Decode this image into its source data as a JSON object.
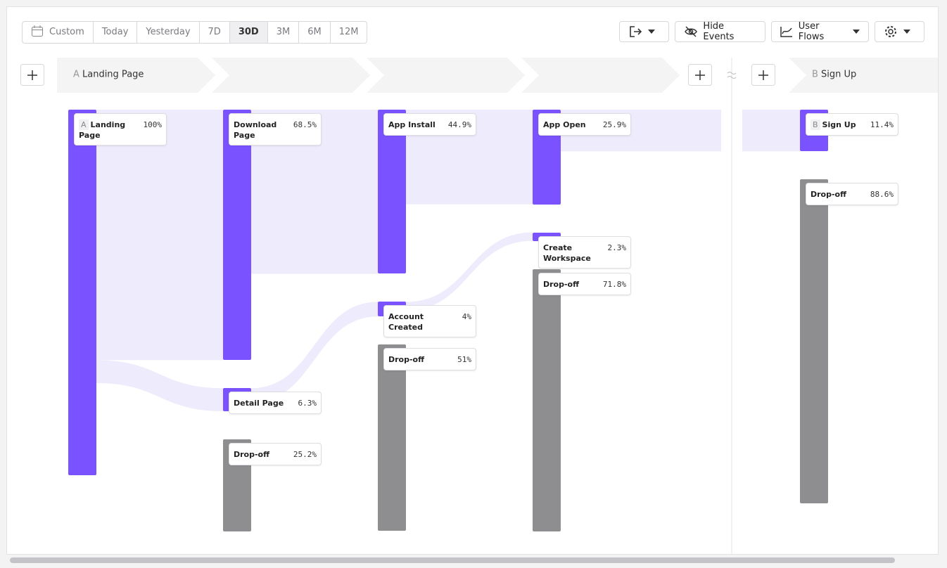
{
  "toolbar": {
    "date_ranges": [
      "Custom",
      "Today",
      "Yesterday",
      "7D",
      "30D",
      "3M",
      "6M",
      "12M"
    ],
    "buttons": [
      "Hide Events",
      "User Flows"
    ]
  },
  "steps": [
    {
      "letter": "A",
      "name": "Landing Page"
    },
    {
      "letter": "B",
      "name": "Sign Up"
    }
  ],
  "columns": [
    {
      "nodes": [
        {
          "badge": "A",
          "label": "Landing Page",
          "value": 100,
          "value_label": "100%",
          "color": "#7b52ff"
        }
      ]
    },
    {
      "nodes": [
        {
          "label": "Download Page",
          "value": 68.5,
          "value_label": "68.5%",
          "color": "#7b52ff"
        },
        {
          "label": "Detail Page",
          "value": 6.3,
          "value_label": "6.3%",
          "color": "#7b52ff"
        },
        {
          "label": "Drop-off",
          "value": 25.2,
          "value_label": "25.2%",
          "color": "#8e8e90"
        }
      ]
    },
    {
      "nodes": [
        {
          "label": "App Install",
          "value": 44.9,
          "value_label": "44.9%",
          "color": "#7b52ff"
        },
        {
          "label": "Account Created",
          "value": 4,
          "value_label": "4%",
          "color": "#7b52ff"
        },
        {
          "label": "Drop-off",
          "value": 51,
          "value_label": "51%",
          "color": "#8e8e90"
        }
      ]
    },
    {
      "nodes": [
        {
          "label": "App Open",
          "value": 25.9,
          "value_label": "25.9%",
          "color": "#7b52ff"
        },
        {
          "label": "Create Workspace",
          "value": 2.3,
          "value_label": "2.3%",
          "color": "#7b52ff"
        },
        {
          "label": "Drop-off",
          "value": 71.8,
          "value_label": "71.8%",
          "color": "#8e8e90"
        }
      ]
    },
    {
      "nodes": [
        {
          "badge": "B",
          "label": "Sign Up",
          "value": 11.4,
          "value_label": "11.4%",
          "color": "#7b52ff"
        },
        {
          "label": "Drop-off",
          "value": 88.6,
          "value_label": "88.6%",
          "color": "#8e8e90"
        }
      ]
    }
  ]
}
